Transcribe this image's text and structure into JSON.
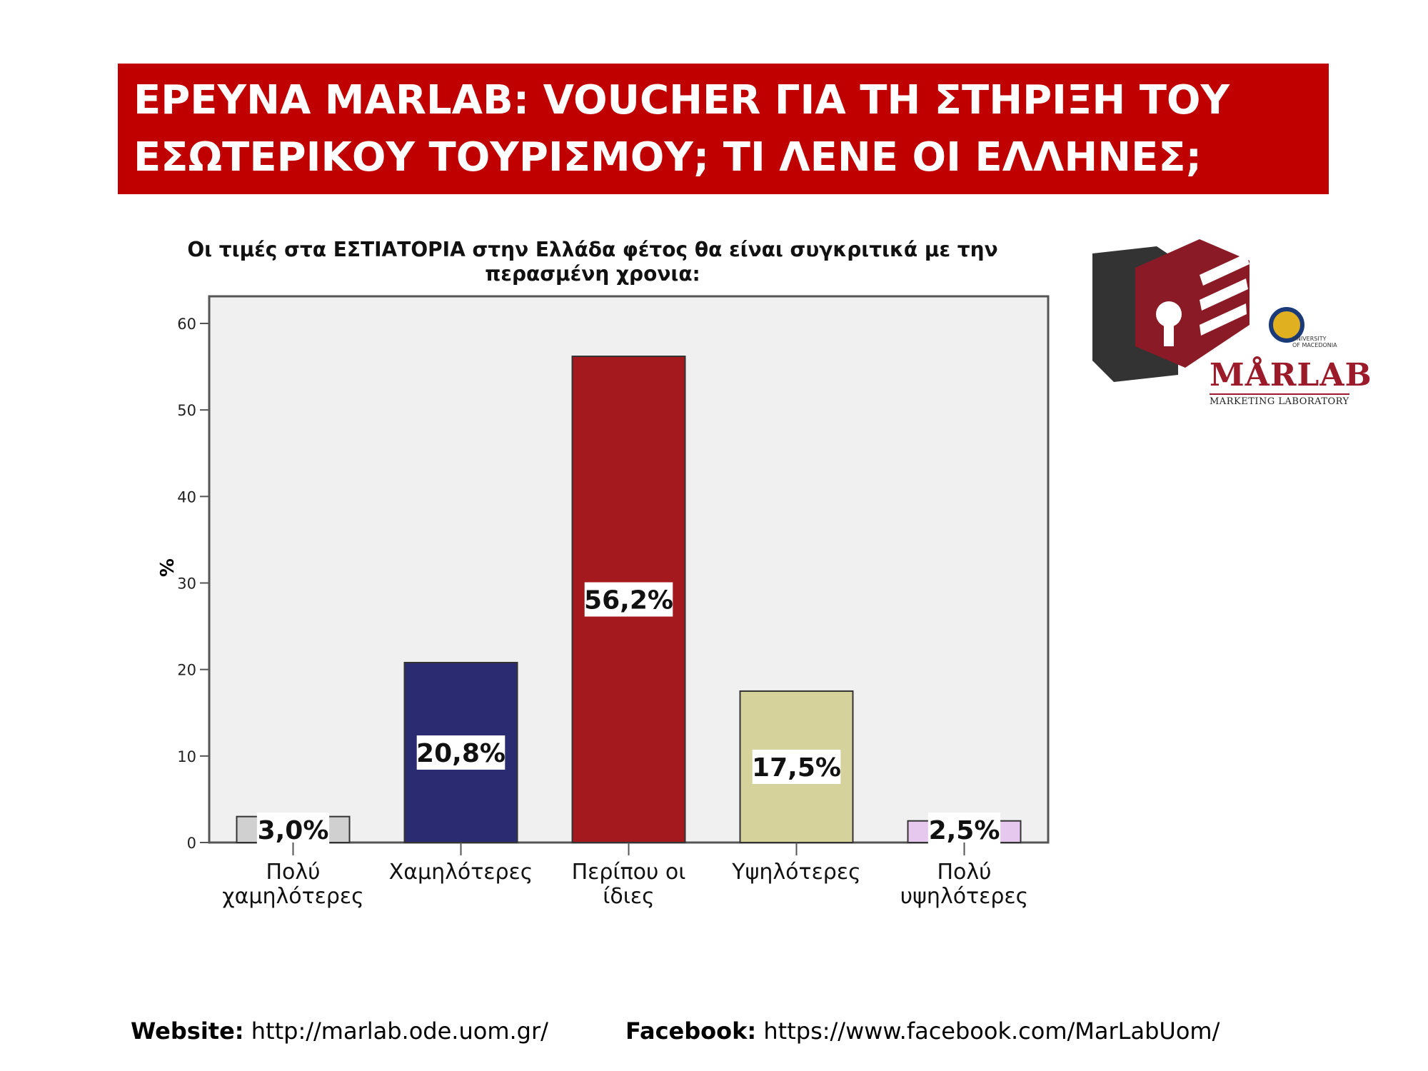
{
  "banner": {
    "line1": "ΕΡΕΥΝΑ MARLAB: VOUCHER ΓΙΑ ΤΗ ΣΤΗΡΙΞΗ ΤΟΥ",
    "line2": "ΕΣΩΤΕΡΙΚΟΥ ΤΟΥΡΙΣΜΟΥ; ΤΙ ΛΕΝΕ ΟΙ ΕΛΛΗΝΕΣ;",
    "color": "#c00000"
  },
  "chart_data": {
    "type": "bar",
    "title_line1": "Οι τιμές στα ΕΣΤΙΑΤΟΡΙΑ στην Ελλάδα φέτος θα είναι συγκριτικά με την",
    "title_line2": "περασμένη χρονια:",
    "ylabel": "%",
    "xlabel": "",
    "ylim": [
      0,
      63
    ],
    "yticks": [
      0,
      10,
      20,
      30,
      40,
      50,
      60
    ],
    "grid": false,
    "categories": [
      [
        "Πολύ",
        "χαμηλότερες"
      ],
      [
        "Χαμηλότερες"
      ],
      [
        "Περίπου οι",
        "ίδιες"
      ],
      [
        "Υψηλότερες"
      ],
      [
        "Πολύ",
        "υψηλότερες"
      ]
    ],
    "values": [
      3.0,
      20.8,
      56.2,
      17.5,
      2.5
    ],
    "data_labels": [
      "3,0%",
      "20,8%",
      "56,2%",
      "17,5%",
      "2,5%"
    ],
    "colors": [
      "#d0d0d0",
      "#2b2b72",
      "#a3191d",
      "#d6d29c",
      "#e6c8ee"
    ],
    "plot_background": "#f0f0f0"
  },
  "logo": {
    "name": "marlab-logo",
    "word": "MÅRLAB",
    "subtitle": "MARKETING LABORATORY",
    "university": [
      "UNIVERSITY",
      "OF MACEDONIA"
    ]
  },
  "footer": {
    "website_label": "Website:",
    "website_url": "http://marlab.ode.uom.gr/",
    "facebook_label": "Facebook:",
    "facebook_url": "https://www.facebook.com/MarLabUom/"
  }
}
